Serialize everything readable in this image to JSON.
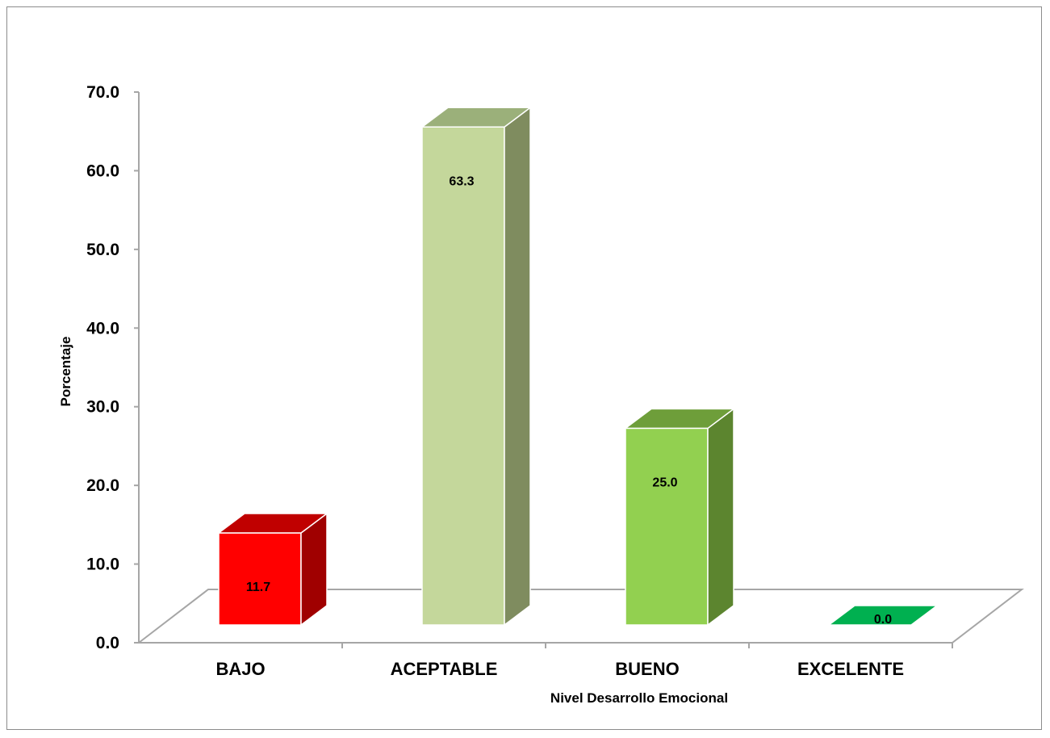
{
  "chart_data": {
    "type": "bar",
    "style": "3d-column",
    "categories": [
      "BAJO",
      "ACEPTABLE",
      "BUENO",
      "EXCELENTE"
    ],
    "values": [
      11.7,
      63.3,
      25.0,
      0.0
    ],
    "value_labels": [
      "11.7",
      "63.3",
      "25.0",
      "0.0"
    ],
    "xlabel": "Nivel Desarrollo Emocional",
    "ylabel": "Porcentaje",
    "ylim": [
      0,
      70
    ],
    "yticks": [
      "0.0",
      "10.0",
      "20.0",
      "30.0",
      "40.0",
      "50.0",
      "60.0",
      "70.0"
    ],
    "grid": false,
    "legend": "none",
    "colors": {
      "BAJO": {
        "front": "#ff0000",
        "top": "#c00000",
        "side": "#a00000"
      },
      "ACEPTABLE": {
        "front": "#c4d79b",
        "top": "#9bb07a",
        "side": "#7f8c5f"
      },
      "BUENO": {
        "front": "#92d050",
        "top": "#6e9e3a",
        "side": "#5c852f"
      },
      "EXCELENTE": {
        "front": "#00b050",
        "top": "#00843c",
        "side": "#006b30"
      }
    }
  }
}
